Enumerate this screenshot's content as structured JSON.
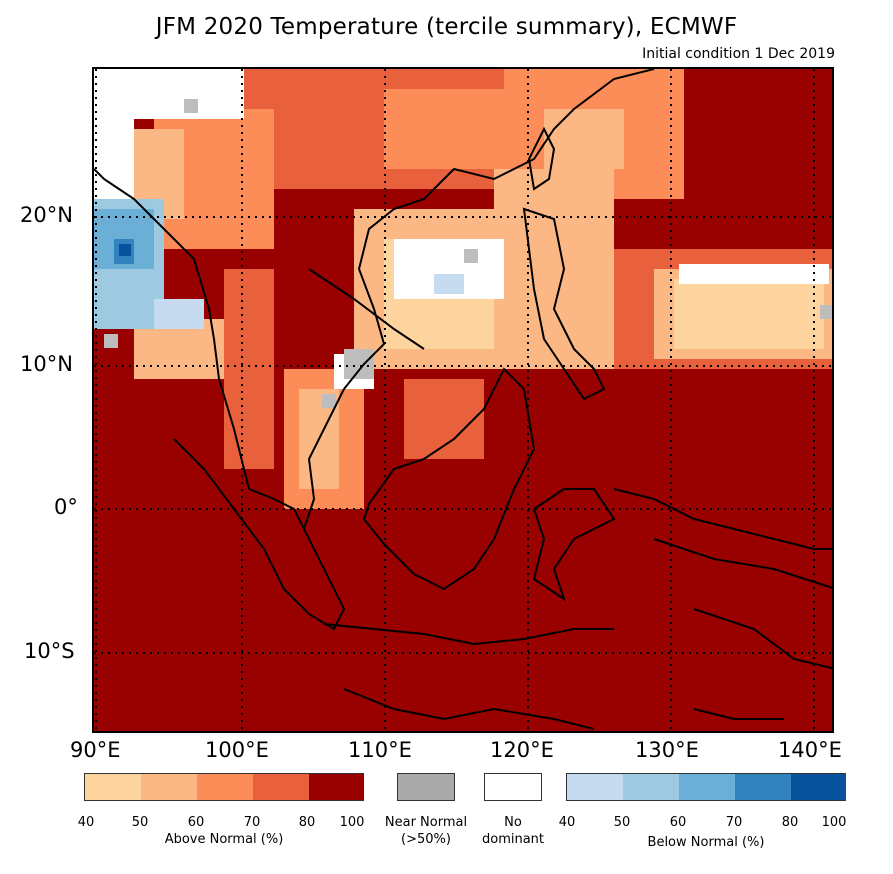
{
  "title": "JFM 2020 Temperature (tercile summary), ECMWF",
  "subtitle": "Initial condition 1 Dec 2019",
  "map": {
    "lat_labels": [
      "20°N",
      "10°N",
      "0°",
      "10°S"
    ],
    "lon_labels": [
      "90°E",
      "100°E",
      "110°E",
      "120°E",
      "130°E",
      "140°E"
    ],
    "dominant_category": "Above Normal 80-100%",
    "colors": {
      "above_40_50": "#fdd49e",
      "above_50_60": "#fcb884",
      "above_60_70": "#fc8d59",
      "above_70_80": "#e8603c",
      "above_80_100": "#990000",
      "near_normal": "#bdbdbd",
      "no_dominant": "#ffffff",
      "below_40_50": "#c6dbef",
      "below_50_60": "#9ecae1",
      "below_60_70": "#6baed6",
      "below_70_80": "#3182bd",
      "below_80_100": "#08519c"
    }
  },
  "legend": {
    "above": {
      "ticks": [
        "40",
        "50",
        "60",
        "70",
        "80",
        "100"
      ],
      "caption": "Above Normal (%)",
      "colors": [
        "#fdd49e",
        "#fcb884",
        "#fc8d59",
        "#e8603c",
        "#990000"
      ]
    },
    "near_normal": {
      "caption_line1": "Near Normal",
      "caption_line2": "(>50%)",
      "color": "#aaaaaa"
    },
    "no_dominant": {
      "caption_line1": "No",
      "caption_line2": "dominant",
      "color": "#ffffff"
    },
    "below": {
      "ticks": [
        "40",
        "50",
        "60",
        "70",
        "80",
        "100"
      ],
      "caption": "Below Normal (%)",
      "colors": [
        "#c6dbef",
        "#9ecae1",
        "#6baed6",
        "#3182bd",
        "#08519c"
      ]
    }
  }
}
